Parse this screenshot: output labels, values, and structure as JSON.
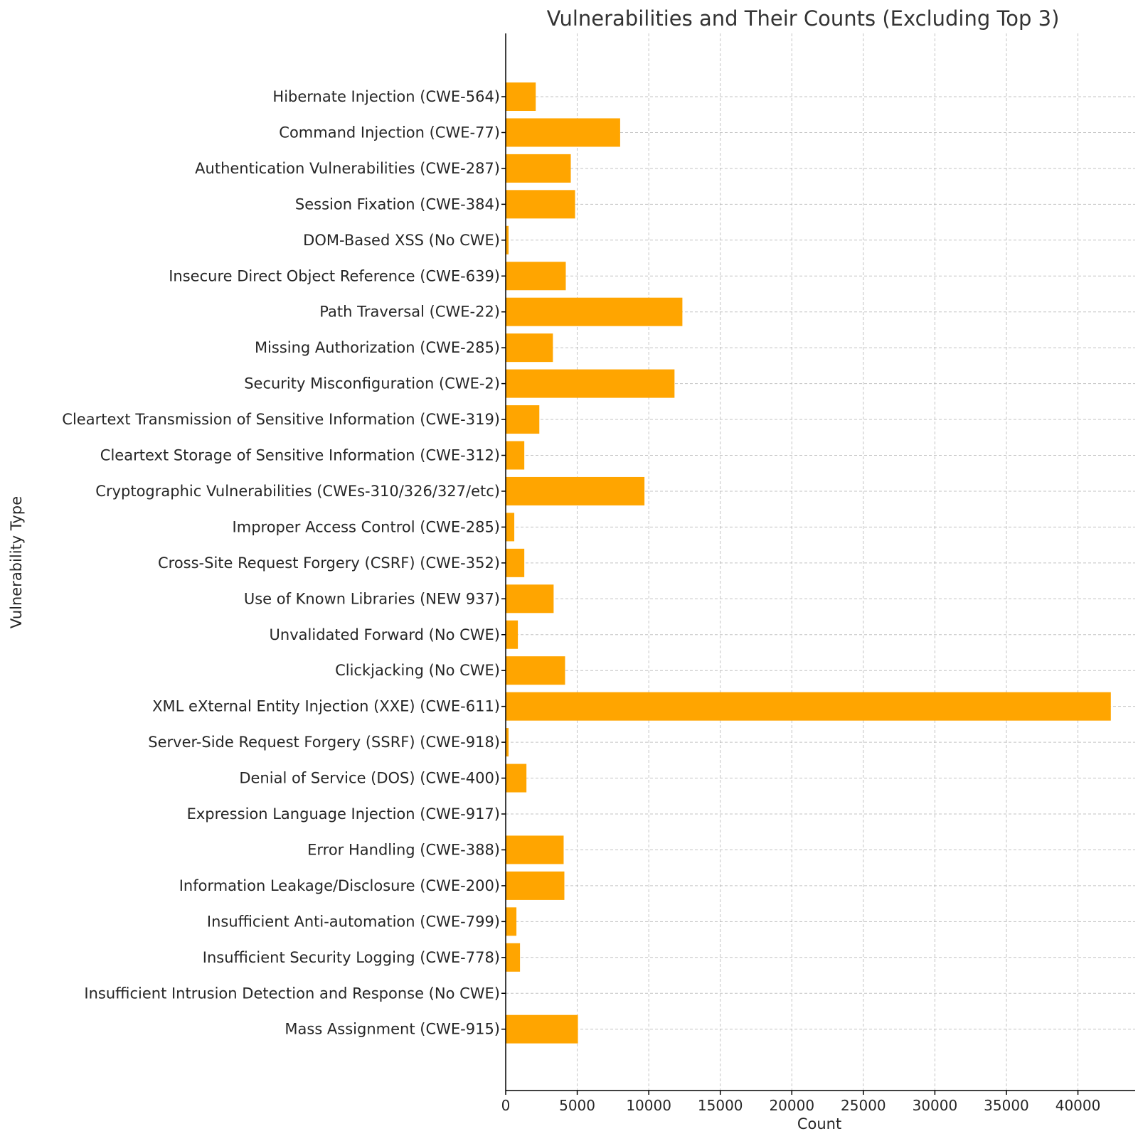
{
  "chart_data": {
    "type": "bar",
    "orientation": "horizontal",
    "title": "Vulnerabilities and Their Counts (Excluding Top 3)",
    "xlabel": "Count",
    "ylabel": "Vulnerability Type",
    "xlim": [
      0,
      44000
    ],
    "xticks": [
      0,
      5000,
      10000,
      15000,
      20000,
      25000,
      30000,
      35000,
      40000
    ],
    "grid": true,
    "bar_color": "#FFA500",
    "categories": [
      "Hibernate Injection (CWE-564)",
      "Command Injection (CWE-77)",
      "Authentication Vulnerabilities (CWE-287)",
      "Session Fixation (CWE-384)",
      "DOM-Based XSS (No CWE)",
      "Insecure Direct Object Reference (CWE-639)",
      "Path Traversal (CWE-22)",
      "Missing Authorization (CWE-285)",
      "Security Misconfiguration (CWE-2)",
      "Cleartext Transmission of Sensitive Information (CWE-319)",
      "Cleartext Storage of Sensitive Information (CWE-312)",
      "Cryptographic Vulnerabilities (CWEs-310/326/327/etc)",
      "Improper Access Control (CWE-285)",
      "Cross-Site Request Forgery (CSRF) (CWE-352)",
      "Use of Known Libraries (NEW 937)",
      "Unvalidated Forward (No CWE)",
      "Clickjacking (No CWE)",
      "XML eXternal Entity Injection (XXE) (CWE-611)",
      "Server-Side Request Forgery (SSRF) (CWE-918)",
      "Denial of Service (DOS) (CWE-400)",
      "Expression Language Injection (CWE-917)",
      "Error Handling (CWE-388)",
      "Information Leakage/Disclosure (CWE-200)",
      "Insufficient Anti-automation (CWE-799)",
      "Insufficient Security Logging (CWE-778)",
      "Insufficient Intrusion Detection and Response (No CWE)",
      "Mass Assignment (CWE-915)"
    ],
    "values": [
      2100,
      8000,
      4550,
      4850,
      200,
      4200,
      12350,
      3300,
      11800,
      2350,
      1300,
      9700,
      600,
      1300,
      3350,
      850,
      4150,
      42300,
      200,
      1450,
      0,
      4050,
      4100,
      750,
      1000,
      0,
      5050
    ]
  }
}
